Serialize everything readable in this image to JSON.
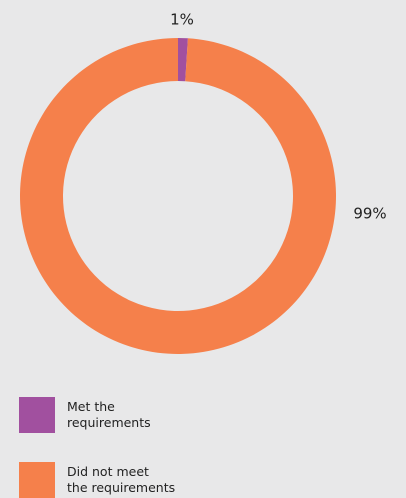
{
  "chart_data": {
    "type": "donut",
    "series": [
      {
        "name": "Met the\nrequirements",
        "color": "#a1509f",
        "value": 1,
        "value_label": "1%"
      },
      {
        "name": "Did not meet\nthe requirements",
        "color": "#f5804b",
        "value": 99,
        "value_label": "99%"
      }
    ],
    "legend": "bottom-left"
  }
}
